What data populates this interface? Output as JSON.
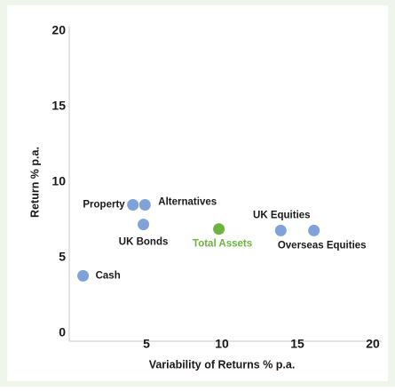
{
  "chart_data": {
    "type": "scatter",
    "x_label": "Variability of Returns % p.a.",
    "y_label": "Return % p.a.",
    "labels": [
      "Cash",
      "Property",
      "Alternatives",
      "UK Bonds",
      "Total Assets",
      "UK Equities",
      "Overseas Equities"
    ],
    "x": [
      0.8,
      4.1,
      4.9,
      4.8,
      9.8,
      13.9,
      16.1
    ],
    "values": [
      3.8,
      8.5,
      8.5,
      7.2,
      6.9,
      6.8,
      6.8
    ],
    "colors": [
      "#7fa2d8",
      "#7fa2d8",
      "#7fa2d8",
      "#7fa2d8",
      "#6cb33f",
      "#7fa2d8",
      "#7fa2d8"
    ],
    "label_colors": [
      "#1a1a1a",
      "#1a1a1a",
      "#1a1a1a",
      "#1a1a1a",
      "#6cb33f",
      "#1a1a1a",
      "#1a1a1a"
    ],
    "xlim": [
      0,
      20
    ],
    "xticks": [
      5,
      10,
      15,
      20
    ],
    "ylim": [
      0,
      20
    ],
    "yticks": [
      0,
      5,
      10,
      15,
      20
    ]
  }
}
